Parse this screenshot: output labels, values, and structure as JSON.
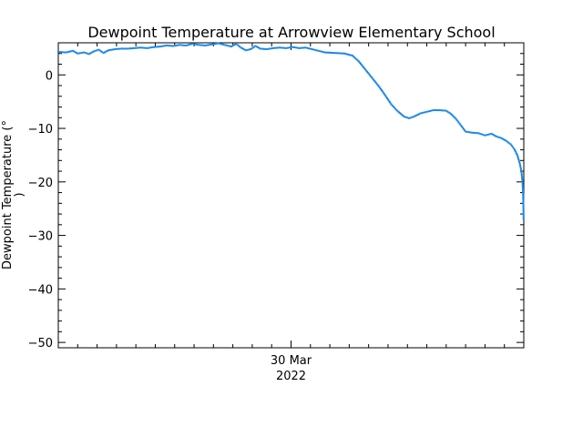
{
  "chart_data": {
    "type": "scatter",
    "title": "Dewpoint Temperature at Arrowview Elementary School",
    "ylabel_line1": "Dewpoint Temperature (°",
    "ylabel_line2": ")",
    "xlabel": "",
    "x_tick": {
      "label": "30 Mar",
      "label2": "2022",
      "x_value": "2022-03-30"
    },
    "x_range": [
      "2022-03-29",
      "2022-03-31"
    ],
    "ylim": [
      -51,
      6
    ],
    "y_ticks": [
      0,
      -10,
      -20,
      -30,
      -40,
      -50
    ],
    "y_tick_labels": [
      "0",
      "−10",
      "−20",
      "−30",
      "−40",
      "−50"
    ],
    "grid": false,
    "series": [
      {
        "color": "#1e88e5",
        "marker": "dot",
        "points": [
          [
            "2022-03-29T00:00",
            4.3
          ],
          [
            "2022-03-29T00:48",
            4.2
          ],
          [
            "2022-03-29T01:30",
            4.5
          ],
          [
            "2022-03-29T02:00",
            4.0
          ],
          [
            "2022-03-29T02:40",
            4.2
          ],
          [
            "2022-03-29T03:10",
            3.9
          ],
          [
            "2022-03-29T03:40",
            4.4
          ],
          [
            "2022-03-29T04:10",
            4.7
          ],
          [
            "2022-03-29T04:40",
            4.1
          ],
          [
            "2022-03-29T05:10",
            4.6
          ],
          [
            "2022-03-29T05:50",
            4.8
          ],
          [
            "2022-03-29T06:30",
            4.9
          ],
          [
            "2022-03-29T07:10",
            4.9
          ],
          [
            "2022-03-29T07:50",
            5.0
          ],
          [
            "2022-03-29T08:30",
            5.1
          ],
          [
            "2022-03-29T09:10",
            5.0
          ],
          [
            "2022-03-29T09:50",
            5.2
          ],
          [
            "2022-03-29T10:30",
            5.3
          ],
          [
            "2022-03-29T11:10",
            5.5
          ],
          [
            "2022-03-29T11:50",
            5.4
          ],
          [
            "2022-03-29T12:30",
            5.6
          ],
          [
            "2022-03-29T13:10",
            5.5
          ],
          [
            "2022-03-29T13:50",
            5.8
          ],
          [
            "2022-03-29T14:30",
            5.6
          ],
          [
            "2022-03-29T15:10",
            5.5
          ],
          [
            "2022-03-29T15:50",
            5.7
          ],
          [
            "2022-03-29T16:30",
            5.9
          ],
          [
            "2022-03-29T17:10",
            5.6
          ],
          [
            "2022-03-29T17:50",
            5.3
          ],
          [
            "2022-03-29T18:20",
            5.8
          ],
          [
            "2022-03-29T18:50",
            5.1
          ],
          [
            "2022-03-29T19:20",
            4.6
          ],
          [
            "2022-03-29T19:50",
            4.8
          ],
          [
            "2022-03-29T20:20",
            5.4
          ],
          [
            "2022-03-29T20:50",
            4.9
          ],
          [
            "2022-03-29T21:30",
            4.8
          ],
          [
            "2022-03-29T22:10",
            5.0
          ],
          [
            "2022-03-29T22:50",
            5.1
          ],
          [
            "2022-03-29T23:30",
            5.0
          ],
          [
            "2022-03-30T00:10",
            5.2
          ],
          [
            "2022-03-30T00:50",
            5.0
          ],
          [
            "2022-03-30T01:30",
            5.1
          ],
          [
            "2022-03-30T02:10",
            4.8
          ],
          [
            "2022-03-30T02:50",
            4.5
          ],
          [
            "2022-03-30T03:30",
            4.2
          ],
          [
            "2022-03-30T04:30",
            4.1
          ],
          [
            "2022-03-30T05:30",
            4.0
          ],
          [
            "2022-03-30T06:20",
            3.6
          ],
          [
            "2022-03-30T07:00",
            2.5
          ],
          [
            "2022-03-30T07:40",
            1.0
          ],
          [
            "2022-03-30T08:20",
            -0.5
          ],
          [
            "2022-03-30T09:00",
            -2.0
          ],
          [
            "2022-03-30T09:40",
            -3.7
          ],
          [
            "2022-03-30T10:20",
            -5.5
          ],
          [
            "2022-03-30T11:00",
            -6.8
          ],
          [
            "2022-03-30T11:40",
            -7.8
          ],
          [
            "2022-03-30T12:10",
            -8.1
          ],
          [
            "2022-03-30T12:40",
            -7.8
          ],
          [
            "2022-03-30T13:20",
            -7.2
          ],
          [
            "2022-03-30T14:00",
            -6.9
          ],
          [
            "2022-03-30T14:40",
            -6.6
          ],
          [
            "2022-03-30T15:20",
            -6.6
          ],
          [
            "2022-03-30T16:00",
            -6.7
          ],
          [
            "2022-03-30T16:30",
            -7.3
          ],
          [
            "2022-03-30T17:00",
            -8.2
          ],
          [
            "2022-03-30T17:30",
            -9.4
          ],
          [
            "2022-03-30T18:00",
            -10.6
          ],
          [
            "2022-03-30T18:40",
            -10.8
          ],
          [
            "2022-03-30T19:20",
            -10.9
          ],
          [
            "2022-03-30T20:00",
            -11.3
          ],
          [
            "2022-03-30T20:40",
            -11.0
          ],
          [
            "2022-03-30T21:10",
            -11.5
          ],
          [
            "2022-03-30T21:40",
            -11.8
          ],
          [
            "2022-03-30T22:10",
            -12.3
          ],
          [
            "2022-03-30T22:40",
            -13.0
          ],
          [
            "2022-03-30T23:00",
            -13.8
          ],
          [
            "2022-03-30T23:20",
            -15.0
          ],
          [
            "2022-03-30T23:35",
            -16.5
          ],
          [
            "2022-03-30T23:45",
            -18.0
          ],
          [
            "2022-03-30T23:52",
            -20.0
          ],
          [
            "2022-03-30T23:56",
            -22.5
          ],
          [
            "2022-03-30T23:58",
            -25.0
          ],
          [
            "2022-03-30T23:59",
            -27.0
          ]
        ]
      }
    ]
  }
}
